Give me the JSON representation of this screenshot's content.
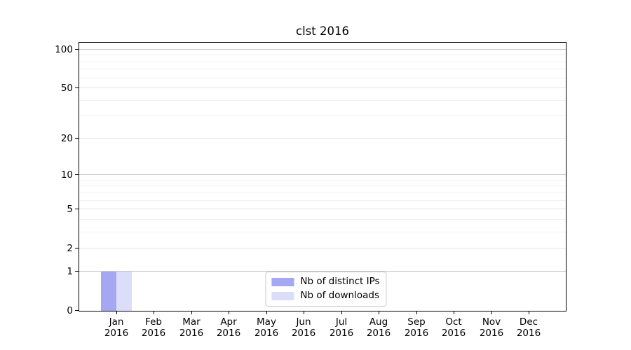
{
  "title": "clst 2016",
  "colors": {
    "distinct_ips_bar": "#a5a7f3",
    "downloads_bar": "#dcddf8",
    "grid_decade": "#c6c6c6",
    "grid_major": "#e4e4e4",
    "grid_minor": "#f1f1f1",
    "axis": "#000000",
    "legend_border": "#cccccc",
    "background": "#ffffff"
  },
  "chart_data": {
    "type": "bar",
    "title": "clst 2016",
    "categories": [
      "Jan 2016",
      "Feb 2016",
      "Mar 2016",
      "Apr 2016",
      "May 2016",
      "Jun 2016",
      "Jul 2016",
      "Aug 2016",
      "Sep 2016",
      "Oct 2016",
      "Nov 2016",
      "Dec 2016"
    ],
    "series": [
      {
        "name": "Nb of distinct IPs",
        "color": "#a5a7f3",
        "values": [
          1,
          0,
          0,
          0,
          0,
          0,
          0,
          0,
          0,
          0,
          0,
          0
        ]
      },
      {
        "name": "Nb of downloads",
        "color": "#dcddf8",
        "values": [
          1,
          0,
          0,
          0,
          0,
          0,
          0,
          0,
          0,
          0,
          0,
          0
        ]
      }
    ],
    "xlabel": "",
    "ylabel": "",
    "y_scale": "log1p",
    "ylim": [
      0,
      113
    ],
    "y_ticks": [
      0,
      1,
      2,
      5,
      10,
      20,
      50,
      100
    ],
    "y_decade_ticks": [
      1,
      10,
      100
    ],
    "y_minor_ticks": [
      3,
      4,
      6,
      7,
      8,
      9,
      30,
      40,
      60,
      70,
      80,
      90
    ],
    "grid": true,
    "legend_position": "lower center"
  }
}
